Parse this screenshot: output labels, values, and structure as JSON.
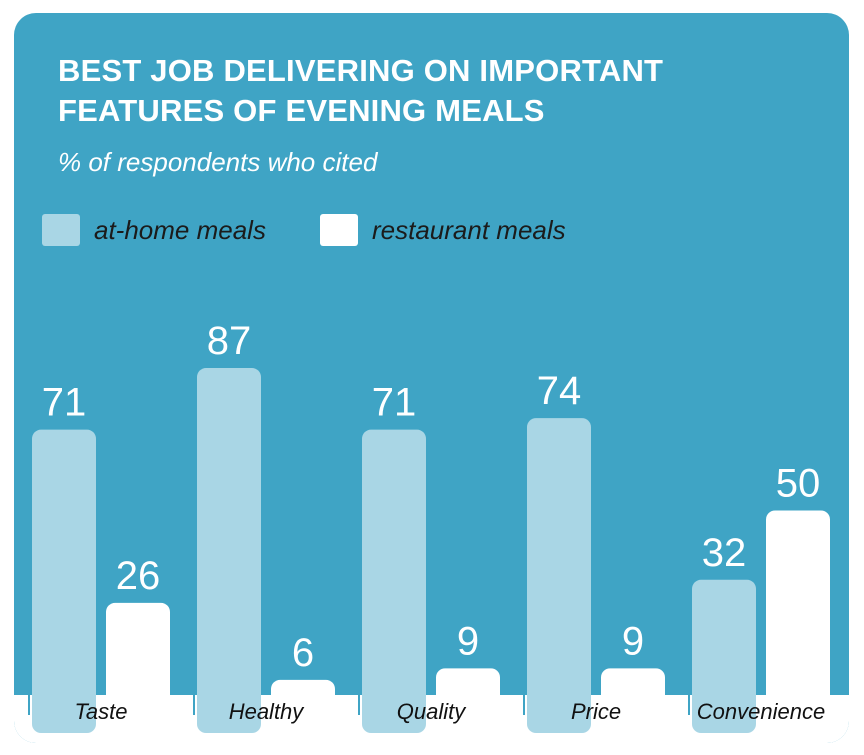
{
  "chart_data": {
    "type": "bar",
    "title": "BEST JOB DELIVERING ON IMPORTANT FEATURES OF EVENING MEALS",
    "subtitle": "% of respondents who cited",
    "categories": [
      "Taste",
      "Healthy",
      "Quality",
      "Price",
      "Convenience"
    ],
    "series": [
      {
        "name": "at-home meals",
        "values": [
          71,
          87,
          71,
          74,
          32
        ],
        "color": "#a9d6e5"
      },
      {
        "name": "restaurant meals",
        "values": [
          26,
          6,
          9,
          9,
          50
        ],
        "color": "#ffffff"
      }
    ],
    "ylim": [
      0,
      100
    ],
    "grid": false,
    "legend_position": "top-left"
  },
  "colors": {
    "background": "#3fa4c5",
    "at_home": "#a9d6e5",
    "restaurant": "#ffffff",
    "text_light": "#ffffff",
    "text_dark": "#111111"
  }
}
